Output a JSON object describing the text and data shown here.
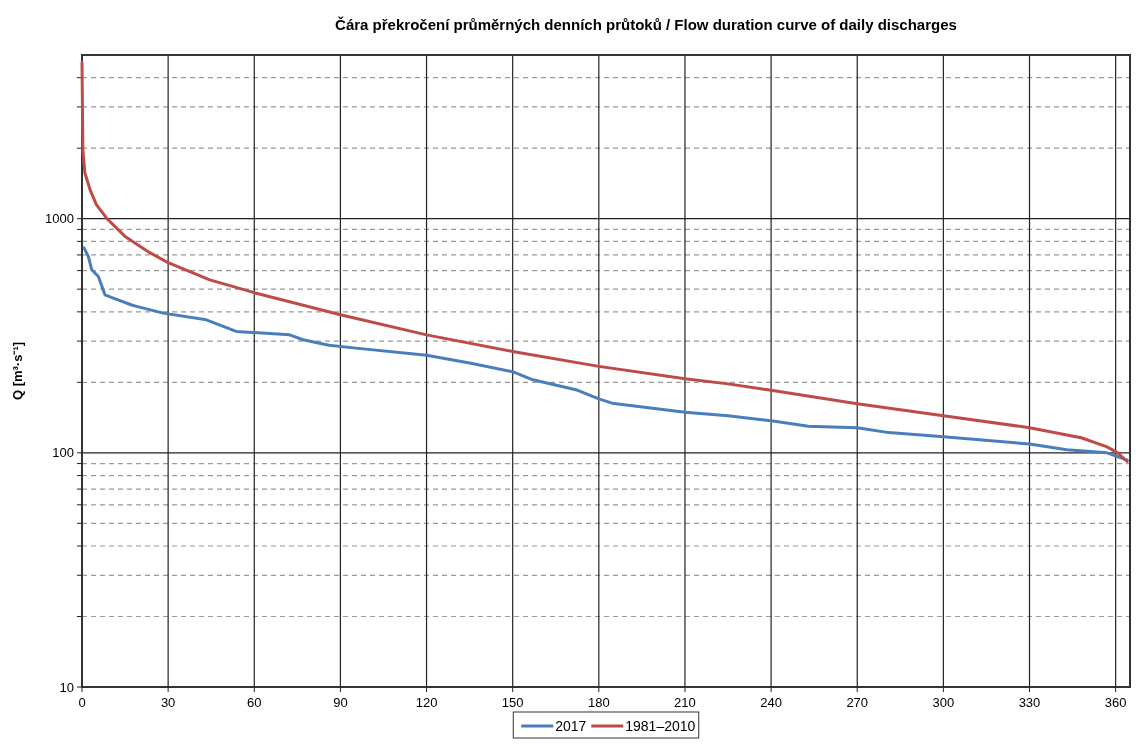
{
  "chart_data": {
    "type": "line",
    "title": "Čára překročení průměrných denních průtoků / Flow duration curve of daily discharges",
    "ylabel": "Q [m³·s⁻¹]",
    "xlim": [
      0,
      365
    ],
    "xticks": [
      0,
      30,
      60,
      90,
      120,
      150,
      180,
      210,
      240,
      270,
      300,
      330,
      360
    ],
    "ylim": [
      10,
      5000
    ],
    "log": true,
    "grid": true,
    "legend": "bottom",
    "line_style": "solid",
    "marker": "none",
    "yticks": [
      10,
      {
        "value": 20,
        "label": null
      },
      {
        "value": 30,
        "label": null
      },
      {
        "value": 40,
        "label": null
      },
      {
        "value": 50,
        "label": null
      },
      {
        "value": 60,
        "label": null
      },
      {
        "value": 70,
        "label": null
      },
      {
        "value": 80,
        "label": null
      },
      {
        "value": 90,
        "label": null
      },
      100,
      {
        "value": 200,
        "label": null
      },
      {
        "value": 300,
        "label": null
      },
      {
        "value": 400,
        "label": null
      },
      {
        "value": 500,
        "label": null
      },
      {
        "value": 600,
        "label": null
      },
      {
        "value": 700,
        "label": null
      },
      {
        "value": 800,
        "label": null
      },
      {
        "value": 900,
        "label": null
      },
      1000,
      {
        "value": 2000,
        "label": null
      },
      {
        "value": 3000,
        "label": null
      },
      {
        "value": 4000,
        "label": null
      }
    ],
    "series": [
      {
        "name": "2017",
        "color": "#4a7ebb",
        "x": [
          0.7,
          2.2,
          3.4,
          5.7,
          8,
          10.9,
          17.3,
          19,
          28.3,
          43.3,
          53.7,
          72.3,
          77,
          86,
          95.4,
          120,
          135,
          150,
          157,
          172,
          180,
          184.6,
          210,
          225,
          240,
          253,
          270,
          281,
          300,
          330,
          343,
          357,
          360,
          364
        ],
        "values": [
          750,
          690,
          605,
          566,
          473,
          458,
          428,
          422,
          395,
          370,
          330,
          319,
          304,
          288,
          280,
          261,
          242,
          222,
          205,
          186,
          170,
          163,
          149,
          144,
          137,
          130,
          128,
          122,
          117,
          109,
          103,
          100,
          97,
          93
        ]
      },
      {
        "name": "1981–2010",
        "color": "#be4b48",
        "x": [
          0,
          0.3,
          1,
          2.8,
          5,
          8.7,
          15,
          23.6,
          30,
          44.5,
          60,
          90,
          120,
          150,
          180,
          210,
          225,
          240,
          270,
          300,
          330,
          348,
          357,
          360.7,
          364
        ],
        "values": [
          4640,
          1970,
          1570,
          1330,
          1148,
          1000,
          840,
          716,
          649,
          548,
          483,
          389,
          319,
          271,
          234,
          207,
          197,
          185,
          162,
          144,
          128,
          116,
          106,
          100,
          92
        ]
      }
    ]
  }
}
